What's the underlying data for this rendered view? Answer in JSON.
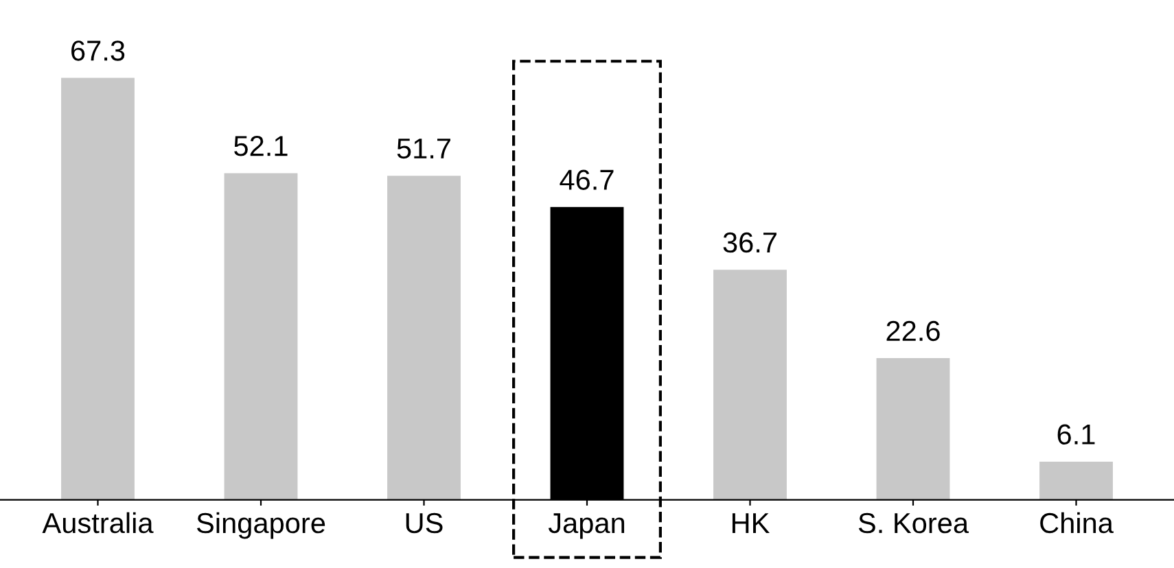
{
  "chart_data": {
    "type": "bar",
    "categories": [
      "Australia",
      "Singapore",
      "US",
      "Japan",
      "HK",
      "S. Korea",
      "China"
    ],
    "values": [
      67.3,
      52.1,
      51.7,
      46.7,
      36.7,
      22.6,
      6.1
    ],
    "colors": [
      "#c8c8c8",
      "#c8c8c8",
      "#c8c8c8",
      "#000000",
      "#c8c8c8",
      "#c8c8c8",
      "#c8c8c8"
    ],
    "data_labels": true,
    "grid": false,
    "tick_labels": "x"
  }
}
